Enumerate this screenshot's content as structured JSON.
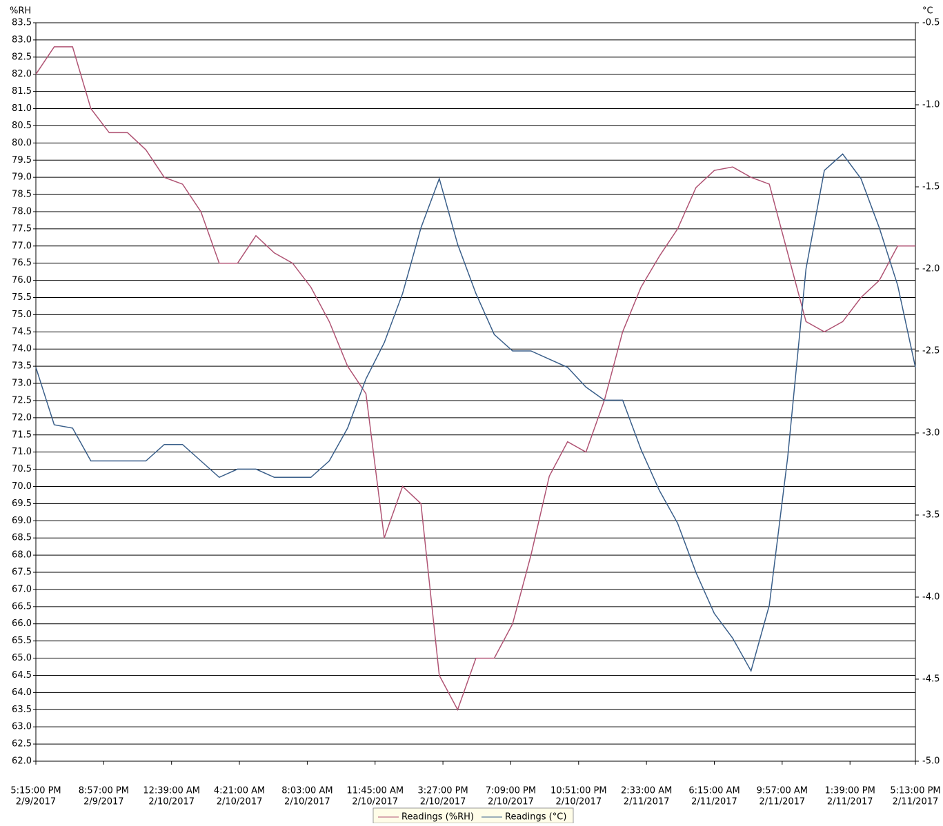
{
  "chart_data": {
    "type": "line",
    "ylabel": "%RH",
    "y2label": "°C",
    "x": [
      "2017-02-09T17:15",
      "2017-02-09T18:15",
      "2017-02-09T19:15",
      "2017-02-09T20:15",
      "2017-02-09T21:15",
      "2017-02-09T22:15",
      "2017-02-09T23:15",
      "2017-02-10T00:15",
      "2017-02-10T01:15",
      "2017-02-10T02:15",
      "2017-02-10T03:15",
      "2017-02-10T04:15",
      "2017-02-10T05:15",
      "2017-02-10T06:15",
      "2017-02-10T07:15",
      "2017-02-10T08:15",
      "2017-02-10T09:15",
      "2017-02-10T10:15",
      "2017-02-10T11:15",
      "2017-02-10T12:15",
      "2017-02-10T13:15",
      "2017-02-10T14:15",
      "2017-02-10T15:15",
      "2017-02-10T16:15",
      "2017-02-10T17:15",
      "2017-02-10T18:15",
      "2017-02-10T19:15",
      "2017-02-10T20:15",
      "2017-02-10T21:15",
      "2017-02-10T22:15",
      "2017-02-10T23:15",
      "2017-02-11T00:15",
      "2017-02-11T01:15",
      "2017-02-11T02:15",
      "2017-02-11T03:15",
      "2017-02-11T04:15",
      "2017-02-11T05:15",
      "2017-02-11T06:15",
      "2017-02-11T07:15",
      "2017-02-11T08:15",
      "2017-02-11T09:15",
      "2017-02-11T10:15",
      "2017-02-11T11:15",
      "2017-02-11T12:15",
      "2017-02-11T13:15",
      "2017-02-11T14:15",
      "2017-02-11T15:15",
      "2017-02-11T16:15",
      "2017-02-11T17:13"
    ],
    "series": [
      {
        "name": "Readings (%RH)",
        "color": "#b05474",
        "values": [
          82.0,
          82.8,
          82.8,
          81.0,
          80.3,
          80.3,
          79.8,
          79.0,
          78.8,
          78.0,
          76.5,
          76.5,
          77.3,
          76.8,
          76.5,
          75.8,
          74.8,
          73.5,
          72.7,
          68.5,
          70.0,
          69.5,
          64.5,
          63.5,
          65.0,
          65.0,
          66.0,
          68.0,
          70.3,
          71.3,
          71.0,
          72.5,
          74.5,
          75.8,
          76.7,
          77.5,
          78.7,
          79.2,
          79.3,
          79.0,
          78.8,
          76.8,
          74.8,
          74.5,
          74.8,
          75.5,
          76.0,
          77.0,
          77.0
        ]
      },
      {
        "name": "Readings (°C)",
        "color": "#3a5f8a",
        "axis": "y2",
        "values": [
          -2.6,
          -2.95,
          -2.97,
          -3.17,
          -3.17,
          -3.17,
          -3.17,
          -3.07,
          -3.07,
          -3.17,
          -3.27,
          -3.22,
          -3.22,
          -3.27,
          -3.27,
          -3.27,
          -3.17,
          -2.97,
          -2.67,
          -2.45,
          -2.15,
          -1.75,
          -1.45,
          -1.85,
          -2.15,
          -2.4,
          -2.5,
          -2.5,
          -2.55,
          -2.6,
          -2.72,
          -2.8,
          -2.8,
          -3.1,
          -3.35,
          -3.55,
          -3.85,
          -4.1,
          -4.25,
          -4.45,
          -4.05,
          -3.15,
          -2.0,
          -1.4,
          -1.3,
          -1.45,
          -1.75,
          -2.1,
          -2.6
        ]
      }
    ],
    "xlim": [
      "2017-02-09T17:15",
      "2017-02-11T17:13"
    ],
    "xticks": [
      {
        "value": "2017-02-09T17:15",
        "label": [
          "5:15:00 PM",
          "2/9/2017"
        ]
      },
      {
        "value": "2017-02-09T20:57",
        "label": [
          "8:57:00 PM",
          "2/9/2017"
        ]
      },
      {
        "value": "2017-02-10T00:39",
        "label": [
          "12:39:00 AM",
          "2/10/2017"
        ]
      },
      {
        "value": "2017-02-10T04:21",
        "label": [
          "4:21:00 AM",
          "2/10/2017"
        ]
      },
      {
        "value": "2017-02-10T08:03",
        "label": [
          "8:03:00 AM",
          "2/10/2017"
        ]
      },
      {
        "value": "2017-02-10T11:45",
        "label": [
          "11:45:00 AM",
          "2/10/2017"
        ]
      },
      {
        "value": "2017-02-10T15:27",
        "label": [
          "3:27:00 PM",
          "2/10/2017"
        ]
      },
      {
        "value": "2017-02-10T19:09",
        "label": [
          "7:09:00 PM",
          "2/10/2017"
        ]
      },
      {
        "value": "2017-02-10T22:51",
        "label": [
          "10:51:00 PM",
          "2/10/2017"
        ]
      },
      {
        "value": "2017-02-11T02:33",
        "label": [
          "2:33:00 AM",
          "2/11/2017"
        ]
      },
      {
        "value": "2017-02-11T06:15",
        "label": [
          "6:15:00 AM",
          "2/11/2017"
        ]
      },
      {
        "value": "2017-02-11T09:57",
        "label": [
          "9:57:00 AM",
          "2/11/2017"
        ]
      },
      {
        "value": "2017-02-11T13:39",
        "label": [
          "1:39:00 PM",
          "2/11/2017"
        ]
      },
      {
        "value": "2017-02-11T17:13",
        "label": [
          "5:13:00 PM",
          "2/11/2017"
        ]
      }
    ],
    "ylim": [
      62,
      83.5
    ],
    "yticks": [
      {
        "value": 62,
        "label": "62.0"
      },
      62.5,
      {
        "value": 63,
        "label": "63.0"
      },
      63.5,
      {
        "value": 64,
        "label": "64.0"
      },
      64.5,
      {
        "value": 65,
        "label": "65.0"
      },
      65.5,
      {
        "value": 66,
        "label": "66.0"
      },
      66.5,
      {
        "value": 67,
        "label": "67.0"
      },
      67.5,
      {
        "value": 68,
        "label": "68.0"
      },
      68.5,
      {
        "value": 69,
        "label": "69.0"
      },
      69.5,
      {
        "value": 70,
        "label": "70.0"
      },
      70.5,
      {
        "value": 71,
        "label": "71.0"
      },
      71.5,
      {
        "value": 72,
        "label": "72.0"
      },
      72.5,
      {
        "value": 73,
        "label": "73.0"
      },
      73.5,
      {
        "value": 74,
        "label": "74.0"
      },
      74.5,
      {
        "value": 75,
        "label": "75.0"
      },
      75.5,
      {
        "value": 76,
        "label": "76.0"
      },
      76.5,
      {
        "value": 77,
        "label": "77.0"
      },
      77.5,
      {
        "value": 78,
        "label": "78.0"
      },
      78.5,
      {
        "value": 79,
        "label": "79.0"
      },
      79.5,
      {
        "value": 80,
        "label": "80.0"
      },
      80.5,
      {
        "value": 81,
        "label": "81.0"
      },
      81.5,
      {
        "value": 82,
        "label": "82.0"
      },
      82.5,
      {
        "value": 83,
        "label": "83.0"
      },
      83.5
    ],
    "y2lim": [
      -5,
      -0.5
    ],
    "y2ticks": [
      {
        "value": -5,
        "label": "-5.0"
      },
      -4.5,
      {
        "value": -4,
        "label": "-4.0"
      },
      -3.5,
      {
        "value": -3,
        "label": "-3.0"
      },
      -2.5,
      {
        "value": -2,
        "label": "-2.0"
      },
      -1.5,
      {
        "value": -1,
        "label": "-1.0"
      },
      -0.5
    ],
    "grid": true,
    "legend": "bottom"
  }
}
